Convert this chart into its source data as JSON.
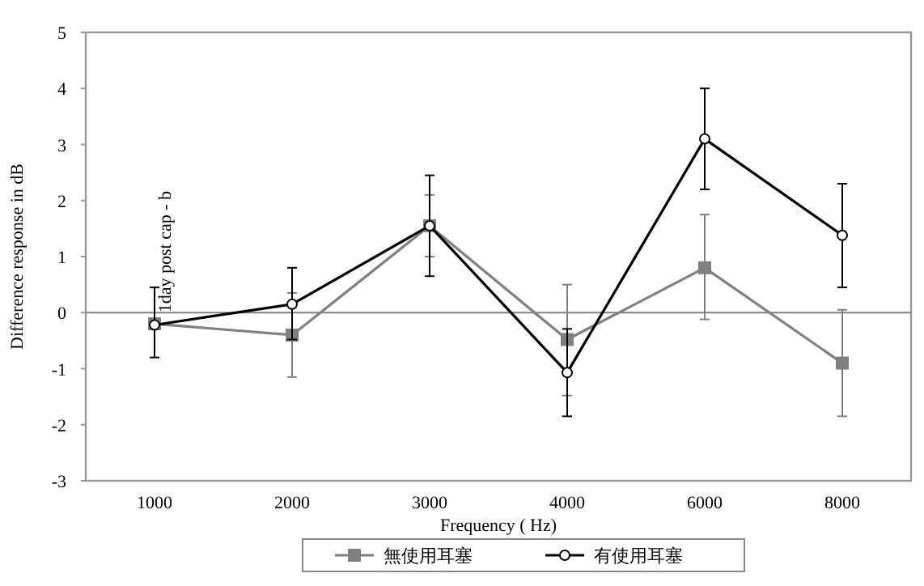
{
  "chart_data": {
    "type": "line",
    "xlabel": "Frequency ( Hz)",
    "ylabel": "Difference response in dB",
    "categories": [
      "1000",
      "2000",
      "3000",
      "4000",
      "6000",
      "8000"
    ],
    "series": [
      {
        "name": "無使用耳塞",
        "color": "#808080",
        "marker": "square",
        "values": [
          -0.2,
          -0.4,
          1.55,
          -0.48,
          0.8,
          -0.9
        ],
        "errors": [
          null,
          [
            -1.15,
            0.35
          ],
          [
            1.0,
            2.1
          ],
          [
            -1.48,
            0.5
          ],
          [
            -0.12,
            1.75
          ],
          [
            -1.85,
            0.05
          ]
        ]
      },
      {
        "name": "有使用耳塞",
        "color": "#000000",
        "marker": "circle",
        "values": [
          -0.22,
          0.15,
          1.55,
          -1.07,
          3.1,
          1.38
        ],
        "errors": [
          [
            -0.8,
            0.45
          ],
          [
            -0.48,
            0.8
          ],
          [
            0.65,
            2.45
          ],
          [
            -1.85,
            -0.29
          ],
          [
            2.2,
            4.0
          ],
          [
            0.45,
            2.3
          ]
        ]
      }
    ],
    "ylim": [
      -3,
      5
    ],
    "yticks": [
      -3,
      -2,
      -1,
      0,
      1,
      2,
      3,
      4,
      5
    ],
    "ref_lines": [
      {
        "axis": "y",
        "value": 0,
        "color": "#808080"
      }
    ],
    "annotations": [
      {
        "text": "1day post cap - b",
        "x": "1000",
        "y": 0
      }
    ],
    "legend": "bottom",
    "grid": false
  }
}
